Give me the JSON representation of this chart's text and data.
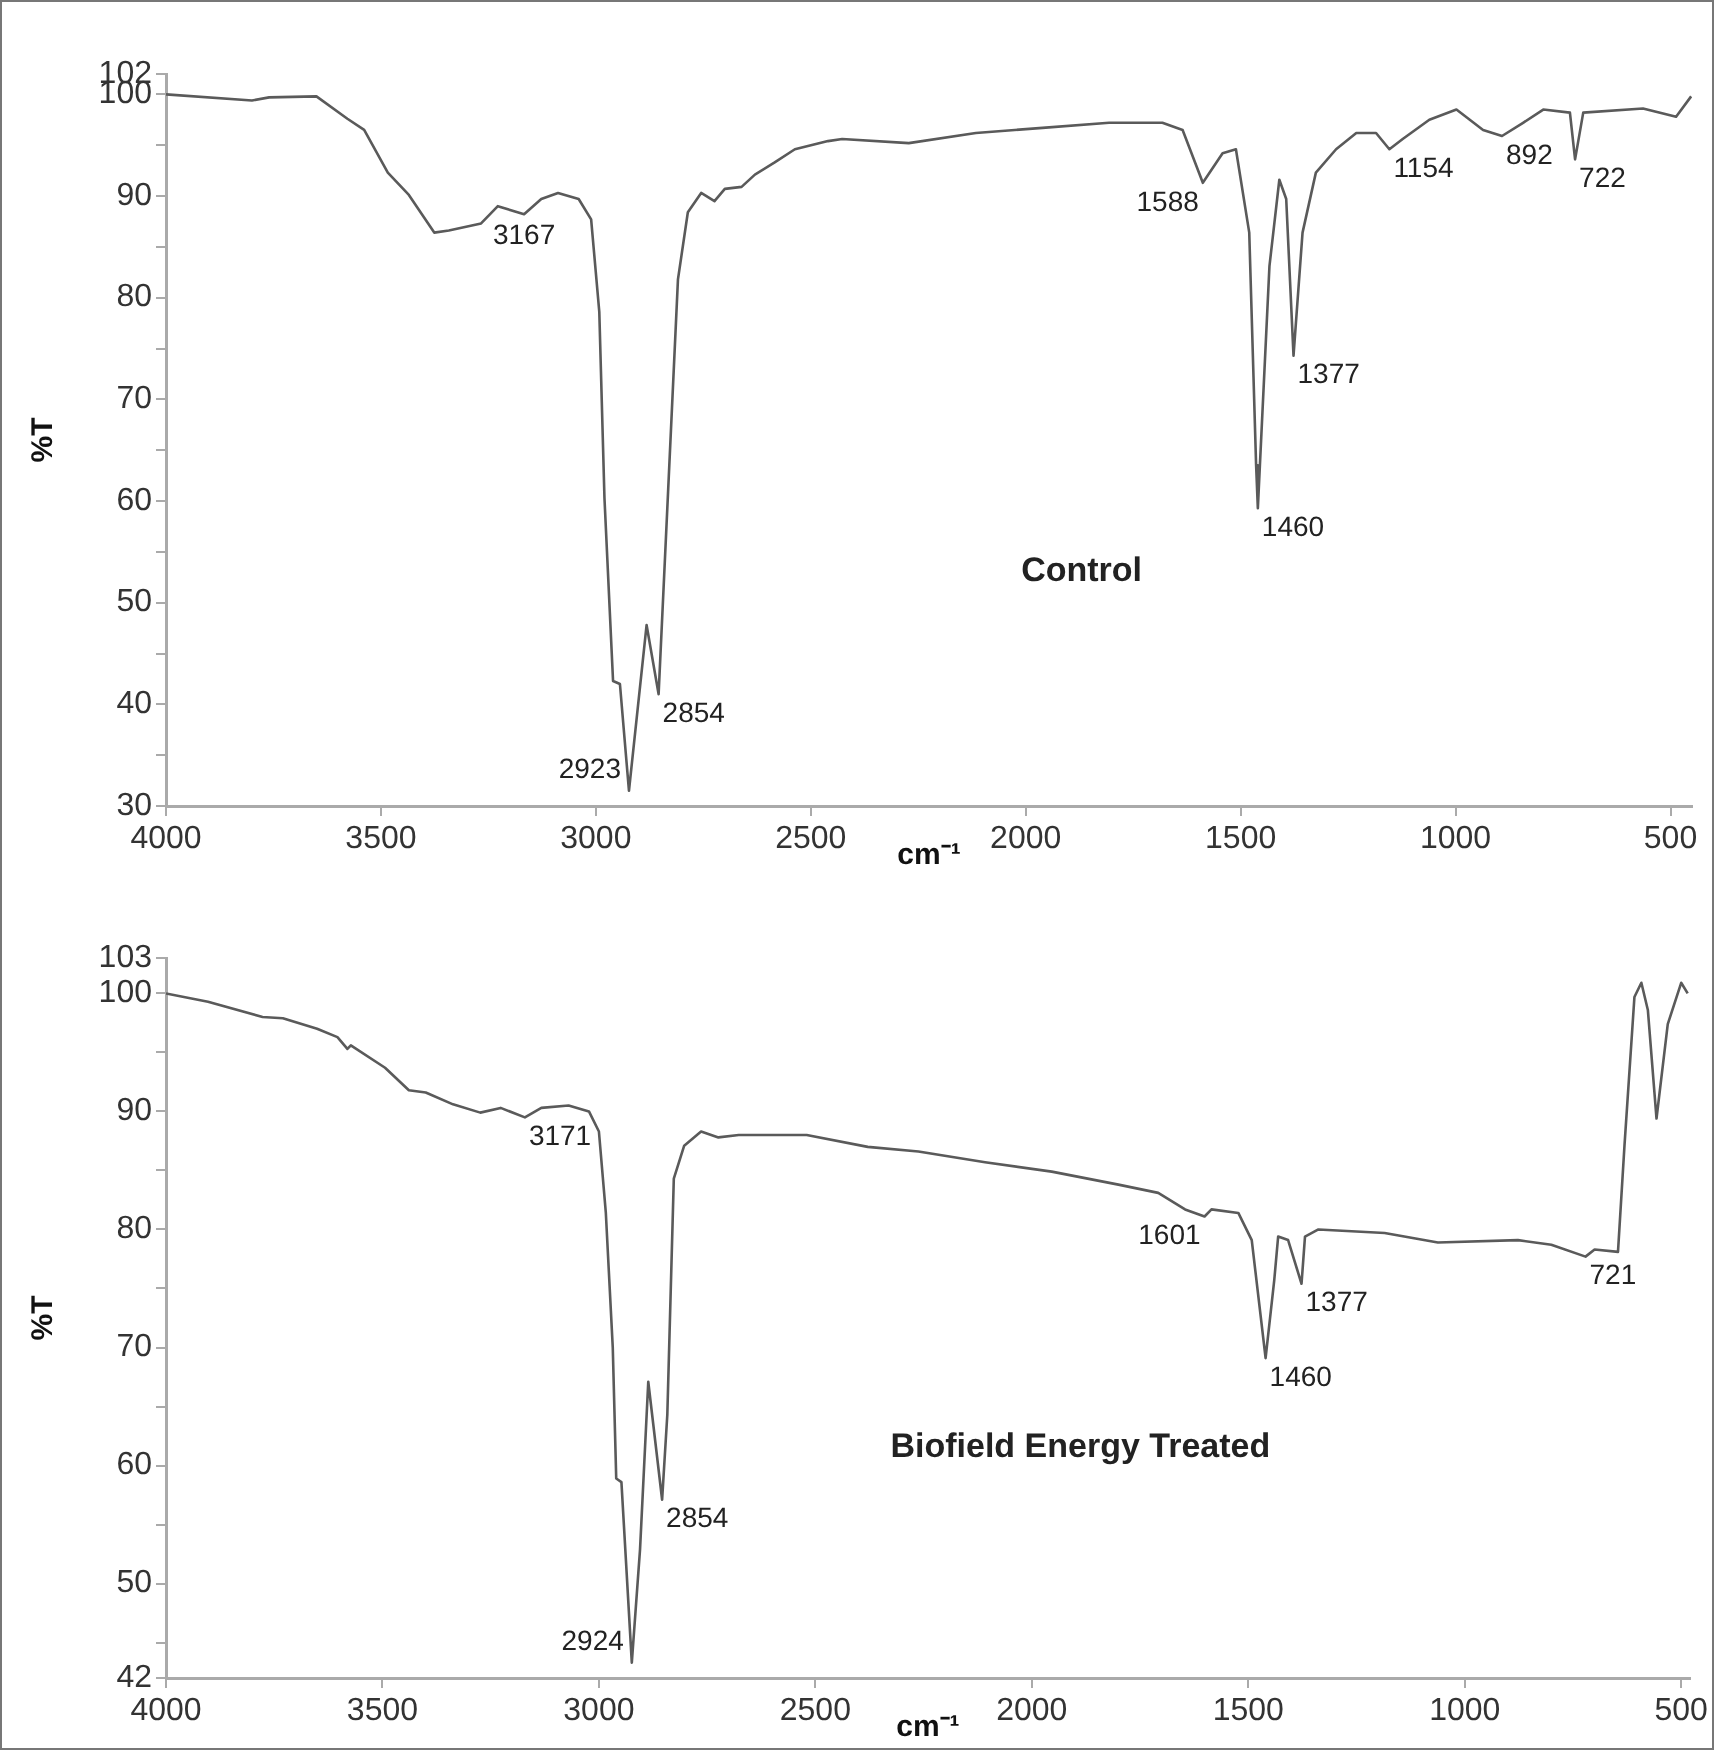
{
  "chart_data": [
    {
      "type": "line",
      "xlabel": "cm⁻¹",
      "ylabel": "%T",
      "color": "#5a5a5a",
      "marker": "none",
      "legend": false,
      "annotations": [
        "Control",
        {
          "text": "3167",
          "x": 3167,
          "y": 88.2
        },
        {
          "text": "2923",
          "x": 2923,
          "y": 31.5
        },
        {
          "text": "2854",
          "x": 2854,
          "y": 41.0
        },
        {
          "text": "1588",
          "x": 1588,
          "y": 91.3
        },
        {
          "text": "1460",
          "x": 1460,
          "y": 59.3
        },
        {
          "text": "1377",
          "x": 1377,
          "y": 74.3
        },
        {
          "text": "1154",
          "x": 1154,
          "y": 94.6
        },
        {
          "text": "892",
          "x": 892,
          "y": 95.9
        },
        {
          "text": "722",
          "x": 722,
          "y": 93.6
        }
      ],
      "x": [
        4000,
        3800,
        3760,
        3650,
        3578,
        3539,
        3484,
        3435,
        3376,
        3342,
        3267,
        3228,
        3167,
        3127,
        3088,
        3040,
        3011,
        2992,
        2980,
        2960,
        2944,
        2923,
        2882,
        2854,
        2832,
        2809,
        2786,
        2755,
        2724,
        2700,
        2661,
        2630,
        2584,
        2537,
        2460,
        2427,
        2272,
        2116,
        1961,
        1806,
        1682,
        1635,
        1588,
        1542,
        1511,
        1480,
        1464,
        1460,
        1433,
        1410,
        1394,
        1377,
        1356,
        1325,
        1278,
        1231,
        1185,
        1154,
        1123,
        1061,
        998,
        936,
        892,
        843,
        796,
        734,
        722,
        703,
        564,
        487,
        452
      ],
      "values": [
        100.0,
        99.4,
        99.7,
        99.8,
        97.6,
        96.5,
        92.3,
        90.1,
        86.4,
        86.6,
        87.3,
        89.0,
        88.2,
        89.7,
        90.3,
        89.7,
        87.7,
        78.6,
        60.3,
        42.3,
        42.0,
        31.5,
        47.8,
        41.0,
        60.9,
        81.8,
        88.4,
        90.3,
        89.5,
        90.7,
        90.9,
        92.1,
        93.3,
        94.6,
        95.4,
        95.6,
        95.2,
        96.2,
        96.7,
        97.2,
        97.2,
        96.5,
        91.3,
        94.2,
        94.6,
        86.4,
        63.5,
        59.3,
        83.1,
        91.6,
        89.7,
        74.3,
        86.4,
        92.3,
        94.6,
        96.2,
        96.2,
        94.6,
        95.6,
        97.5,
        98.5,
        96.5,
        95.9,
        97.2,
        98.5,
        98.2,
        93.6,
        98.2,
        98.6,
        97.8,
        99.8
      ],
      "xlim": [
        4000,
        450
      ],
      "xticks": [
        4000,
        3500,
        3000,
        2500,
        2000,
        1500,
        1000,
        500
      ],
      "ylim": [
        30,
        102
      ],
      "yticks": [
        30,
        {
          "value": 35,
          "label": null
        },
        40,
        {
          "value": 45,
          "label": null
        },
        50,
        {
          "value": 55,
          "label": null
        },
        60,
        {
          "value": 65,
          "label": null
        },
        70,
        {
          "value": 75,
          "label": null
        },
        80,
        {
          "value": 85,
          "label": null
        },
        90,
        {
          "value": 95,
          "label": null
        },
        100,
        102
      ]
    },
    {
      "type": "line",
      "xlabel": "cm⁻¹",
      "ylabel": "%T",
      "color": "#5a5a5a",
      "marker": "none",
      "legend": false,
      "annotations": [
        "Biofield Energy Treated",
        {
          "text": "3171",
          "x": 3171,
          "y": 89.5
        },
        {
          "text": "2924",
          "x": 2924,
          "y": 43.3
        },
        {
          "text": "2854",
          "x": 2854,
          "y": 57.1
        },
        {
          "text": "1601",
          "x": 1601,
          "y": 81.1
        },
        {
          "text": "1460",
          "x": 1460,
          "y": 69.1
        },
        {
          "text": "1377",
          "x": 1377,
          "y": 75.4
        },
        {
          "text": "721",
          "x": 721,
          "y": 77.7
        }
      ],
      "x": [
        4000,
        3903,
        3777,
        3730,
        3651,
        3604,
        3581,
        3573,
        3494,
        3439,
        3400,
        3337,
        3274,
        3227,
        3171,
        3133,
        3070,
        3023,
        3000,
        2984,
        2968,
        2960,
        2948,
        2924,
        2905,
        2886,
        2854,
        2842,
        2827,
        2803,
        2764,
        2724,
        2677,
        2520,
        2379,
        2262,
        2108,
        1954,
        1800,
        1708,
        1646,
        1601,
        1585,
        1523,
        1492,
        1460,
        1440,
        1431,
        1408,
        1377,
        1369,
        1338,
        1185,
        1062,
        877,
        800,
        721,
        700,
        646,
        631,
        608,
        592,
        577,
        557,
        531,
        500,
        485
      ],
      "values": [
        100.0,
        99.3,
        98.0,
        97.9,
        97.0,
        96.3,
        95.3,
        95.6,
        93.7,
        91.8,
        91.6,
        90.6,
        89.9,
        90.3,
        89.5,
        90.3,
        90.5,
        90.0,
        88.3,
        81.4,
        70.0,
        58.9,
        58.6,
        43.3,
        52.9,
        67.1,
        57.1,
        64.3,
        84.3,
        87.1,
        88.3,
        87.8,
        88.0,
        88.0,
        87.0,
        86.6,
        85.7,
        84.9,
        83.8,
        83.1,
        81.7,
        81.1,
        81.7,
        81.4,
        79.1,
        69.1,
        75.7,
        79.4,
        79.1,
        75.4,
        79.4,
        80.0,
        79.7,
        78.9,
        79.1,
        78.7,
        77.7,
        78.3,
        78.1,
        87.1,
        99.7,
        100.9,
        98.6,
        89.4,
        97.4,
        100.9,
        100.0
      ],
      "xlim": [
        4000,
        480
      ],
      "xticks": [
        4000,
        3500,
        3000,
        2500,
        2000,
        1500,
        1000,
        500
      ],
      "ylim": [
        42,
        103
      ],
      "yticks": [
        42,
        {
          "value": 45,
          "label": null
        },
        50,
        {
          "value": 55,
          "label": null
        },
        60,
        {
          "value": 65,
          "label": null
        },
        70,
        {
          "value": 75,
          "label": null
        },
        80,
        {
          "value": 85,
          "label": null
        },
        90,
        {
          "value": 95,
          "label": null
        },
        100,
        103
      ]
    }
  ]
}
